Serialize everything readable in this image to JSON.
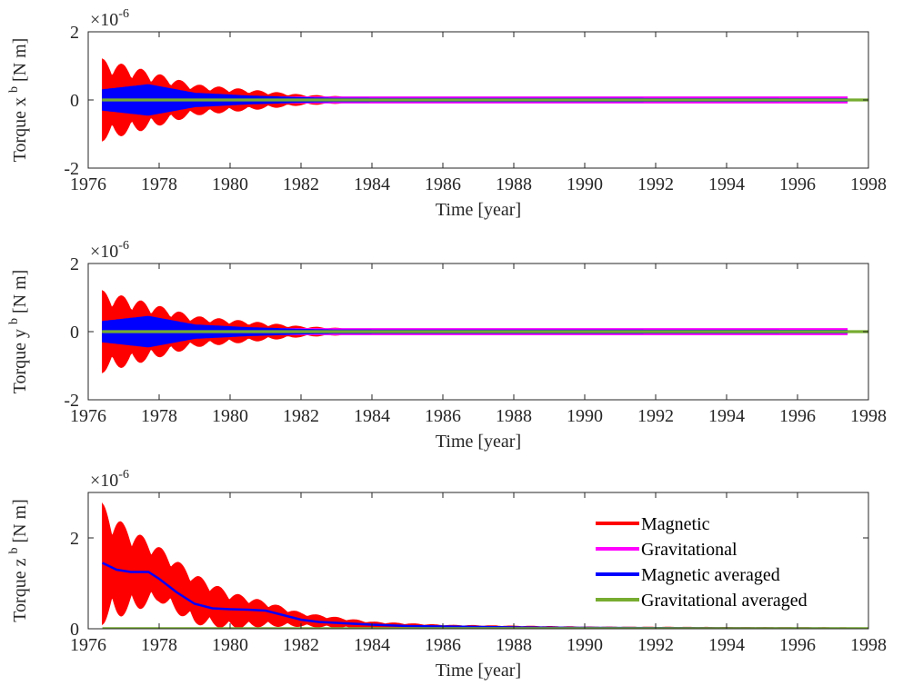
{
  "chart_data": [
    {
      "type": "line",
      "id": "x",
      "xlabel": "Time [year]",
      "ylabel_main": "Torque x",
      "ylabel_sup": "b",
      "ylabel_unit": " [N m]",
      "exponent_base": "×10",
      "exponent_power": "-6",
      "xlim": [
        1976,
        1998
      ],
      "ylim": [
        -2,
        2
      ],
      "xticks": [
        "1976",
        "1978",
        "1980",
        "1982",
        "1984",
        "1986",
        "1988",
        "1990",
        "1992",
        "1994",
        "1996",
        "1998"
      ],
      "yticks": [
        "-2",
        "0",
        "2"
      ],
      "series": [
        {
          "label": "Magnetic",
          "color": "#ff0000",
          "band": {
            "x": [
              1976.4,
              1977.5,
              1979.0,
              1980.5,
              1982.0,
              1983.5,
              1985.0,
              1997.4
            ],
            "amp": [
              1.2,
              0.9,
              0.45,
              0.3,
              0.15,
              0.08,
              0.06,
              0.05
            ]
          }
        },
        {
          "label": "Gravitational",
          "color": "#ff00ff",
          "band": {
            "x": [
              1976.4,
              1997.4
            ],
            "amp": [
              0.09,
              0.09
            ]
          }
        },
        {
          "label": "Magnetic averaged",
          "color": "#0000ff",
          "band": {
            "x": [
              1976.4,
              1977.7,
              1979.0,
              1980.5,
              1982.0,
              1983.0,
              1997.4
            ],
            "amp": [
              0.3,
              0.45,
              0.2,
              0.12,
              0.07,
              0.05,
              0.04
            ]
          }
        },
        {
          "label": "Gravitational averaged",
          "color": "#77ac30",
          "band": {
            "x": [
              1976.4,
              1998
            ],
            "amp": [
              0.03,
              0.03
            ]
          }
        }
      ]
    },
    {
      "type": "line",
      "id": "y",
      "xlabel": "Time [year]",
      "ylabel_main": "Torque y",
      "ylabel_sup": "b",
      "ylabel_unit": " [N m]",
      "exponent_base": "×10",
      "exponent_power": "-6",
      "xlim": [
        1976,
        1998
      ],
      "ylim": [
        -2,
        2
      ],
      "xticks": [
        "1976",
        "1978",
        "1980",
        "1982",
        "1984",
        "1986",
        "1988",
        "1990",
        "1992",
        "1994",
        "1996",
        "1998"
      ],
      "yticks": [
        "-2",
        "0",
        "2"
      ],
      "series": [
        {
          "label": "Magnetic",
          "color": "#ff0000",
          "band": {
            "x": [
              1976.4,
              1977.5,
              1979.0,
              1980.5,
              1982.0,
              1983.5,
              1985.0,
              1997.4
            ],
            "amp": [
              1.2,
              0.9,
              0.45,
              0.3,
              0.15,
              0.08,
              0.06,
              0.05
            ]
          }
        },
        {
          "label": "Gravitational",
          "color": "#ff00ff",
          "band": {
            "x": [
              1976.4,
              1997.4
            ],
            "amp": [
              0.09,
              0.09
            ]
          }
        },
        {
          "label": "Magnetic averaged",
          "color": "#0000ff",
          "band": {
            "x": [
              1976.4,
              1977.7,
              1979.0,
              1980.5,
              1982.0,
              1983.0,
              1997.4
            ],
            "amp": [
              0.3,
              0.45,
              0.2,
              0.12,
              0.07,
              0.05,
              0.04
            ]
          }
        },
        {
          "label": "Gravitational averaged",
          "color": "#77ac30",
          "band": {
            "x": [
              1976.4,
              1998
            ],
            "amp": [
              0.03,
              0.03
            ]
          }
        }
      ]
    },
    {
      "type": "line",
      "id": "z",
      "xlabel": "Time [year]",
      "ylabel_main": "Torque z",
      "ylabel_sup": "b",
      "ylabel_unit": " [N m]",
      "exponent_base": "×10",
      "exponent_power": "-6",
      "xlim": [
        1976,
        1998
      ],
      "ylim": [
        0,
        3
      ],
      "xticks": [
        "1976",
        "1978",
        "1980",
        "1982",
        "1984",
        "1986",
        "1988",
        "1990",
        "1992",
        "1994",
        "1996",
        "1998"
      ],
      "yticks": [
        "0",
        "2"
      ],
      "legend_position": "top-right",
      "series": [
        {
          "label": "Magnetic",
          "color": "#ff0000",
          "envelope": {
            "x": [
              1976.4,
              1977.0,
              1978.0,
              1979.0,
              1980.0,
              1981.0,
              1982.0,
              1983.0,
              1984.0,
              1986.0,
              1990.0,
              1998.0
            ],
            "upper": [
              2.75,
              2.3,
              1.8,
              1.2,
              0.8,
              0.6,
              0.35,
              0.25,
              0.15,
              0.08,
              0.04,
              0.02
            ],
            "lower": [
              0.1,
              0.3,
              0.6,
              0.1,
              0.0,
              0.05,
              0.05,
              0.02,
              0.0,
              0.0,
              0.0,
              0.0
            ],
            "osc_period": 0.55
          }
        },
        {
          "label": "Gravitational",
          "color": "#ff00ff",
          "constant": 0.005,
          "x_range": [
            1976.4,
            1998
          ]
        },
        {
          "label": "Magnetic averaged",
          "color": "#0000ff",
          "x": [
            1976.4,
            1976.8,
            1977.2,
            1977.7,
            1978.0,
            1978.5,
            1979.0,
            1979.5,
            1980.0,
            1980.5,
            1981.0,
            1981.5,
            1982.0,
            1982.5,
            1983.0,
            1984.0,
            1985.0,
            1986.0,
            1988.0,
            1990.0,
            1992.0,
            1994.0,
            1996.0,
            1998.0
          ],
          "y": [
            1.45,
            1.3,
            1.25,
            1.25,
            1.1,
            0.8,
            0.55,
            0.45,
            0.43,
            0.42,
            0.4,
            0.3,
            0.2,
            0.15,
            0.13,
            0.09,
            0.06,
            0.05,
            0.03,
            0.02,
            0.015,
            0.01,
            0.008,
            0.005
          ]
        },
        {
          "label": "Gravitational averaged",
          "color": "#77ac30",
          "constant": 0.005,
          "x_range": [
            1976.4,
            1998
          ]
        }
      ]
    }
  ]
}
